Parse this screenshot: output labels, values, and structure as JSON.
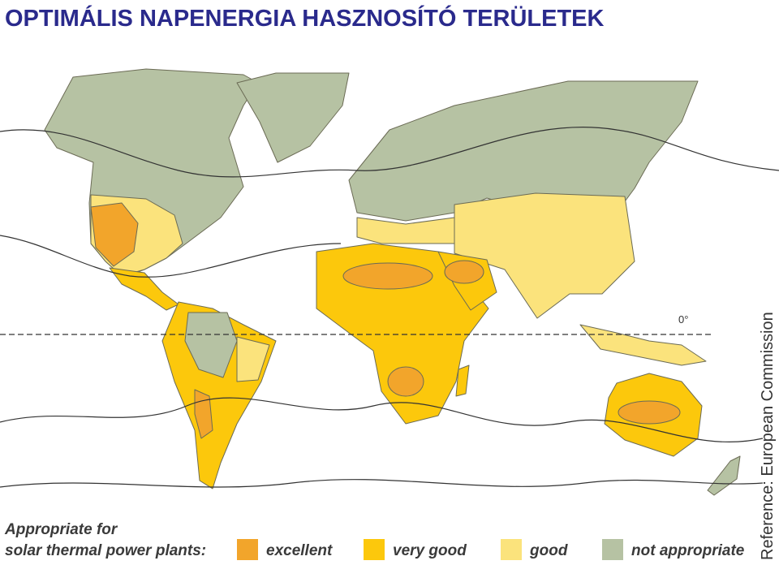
{
  "title": "OPTIMÁLIS NAPENERGIA HASZNOSÍTÓ TERÜLETEK",
  "map": {
    "equator_label": "0°"
  },
  "legend": {
    "heading": [
      "Appropriate for",
      "solar thermal power plants:"
    ],
    "items": [
      {
        "label": "excellent",
        "color": "#f2a52b"
      },
      {
        "label": "very good",
        "color": "#fcc80c"
      },
      {
        "label": "good",
        "color": "#fbe37c"
      },
      {
        "label": "not appropriate",
        "color": "#b6c2a3"
      }
    ]
  },
  "reference": "Reference: European Commission"
}
